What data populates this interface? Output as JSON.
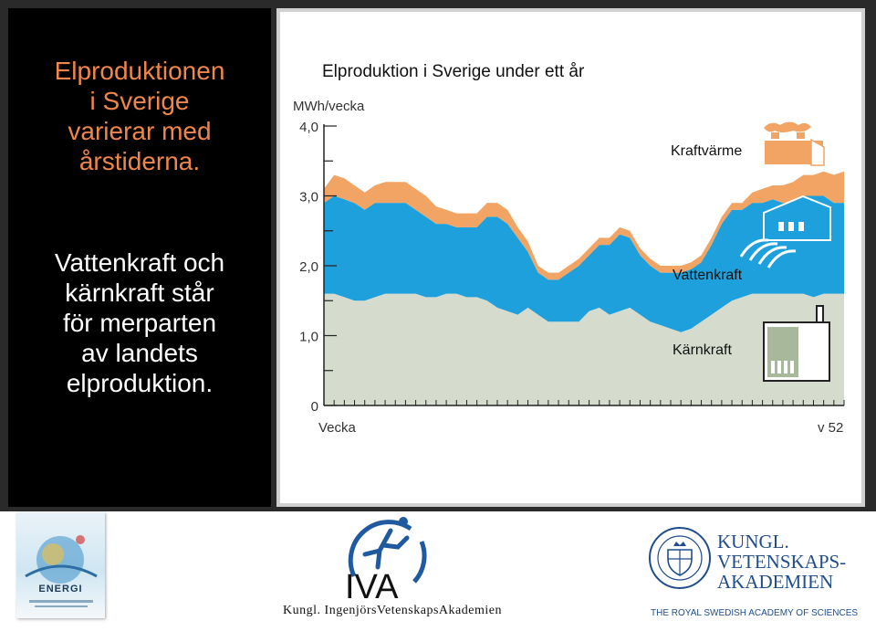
{
  "slide": {
    "heading_lines": [
      "Elproduktionen",
      "i Sverige",
      "varierar med",
      "årstiderna."
    ],
    "body_lines": [
      "Vattenkraft och",
      "kärnkraft står",
      "för merparten",
      "av landets",
      "elproduktion."
    ],
    "accent_color": "#f0874a"
  },
  "chart_data": {
    "type": "area",
    "stacked": true,
    "title": "Elproduktion i Sverige under ett år",
    "ylabel": "MWh/vecka",
    "xlabel": "Vecka",
    "x_end_label": "v 52",
    "ylim": [
      0,
      4.0
    ],
    "y_ticks": [
      {
        "value": 0,
        "label": "0"
      },
      {
        "value": 1.0,
        "label": "1,0"
      },
      {
        "value": 2.0,
        "label": "2,0"
      },
      {
        "value": 3.0,
        "label": "3,0"
      },
      {
        "value": 4.0,
        "label": "4,0"
      }
    ],
    "x": [
      1,
      2,
      3,
      4,
      5,
      6,
      7,
      8,
      9,
      10,
      11,
      12,
      13,
      14,
      15,
      16,
      17,
      18,
      19,
      20,
      21,
      22,
      23,
      24,
      25,
      26,
      27,
      28,
      29,
      30,
      31,
      32,
      33,
      34,
      35,
      36,
      37,
      38,
      39,
      40,
      41,
      42,
      43,
      44,
      45,
      46,
      47,
      48,
      49,
      50,
      51,
      52
    ],
    "series": [
      {
        "name": "Kärnkraft",
        "color": "#d5dbcd",
        "values": [
          1.6,
          1.6,
          1.55,
          1.5,
          1.5,
          1.55,
          1.6,
          1.6,
          1.6,
          1.6,
          1.55,
          1.55,
          1.6,
          1.6,
          1.55,
          1.55,
          1.5,
          1.4,
          1.35,
          1.3,
          1.4,
          1.3,
          1.2,
          1.2,
          1.2,
          1.2,
          1.35,
          1.4,
          1.3,
          1.35,
          1.4,
          1.3,
          1.2,
          1.15,
          1.1,
          1.05,
          1.1,
          1.2,
          1.3,
          1.4,
          1.5,
          1.55,
          1.6,
          1.6,
          1.6,
          1.6,
          1.6,
          1.6,
          1.55,
          1.6,
          1.6,
          1.6
        ]
      },
      {
        "name": "Vattenkraft",
        "color": "#1ea0dc",
        "values": [
          1.3,
          1.4,
          1.4,
          1.4,
          1.3,
          1.35,
          1.3,
          1.3,
          1.3,
          1.2,
          1.15,
          1.05,
          1.0,
          0.95,
          1.0,
          1.0,
          1.2,
          1.3,
          1.25,
          1.1,
          0.8,
          0.6,
          0.6,
          0.6,
          0.7,
          0.8,
          0.8,
          0.9,
          1.0,
          1.1,
          1.0,
          0.85,
          0.8,
          0.75,
          0.8,
          0.85,
          0.85,
          0.85,
          1.0,
          1.2,
          1.3,
          1.25,
          1.3,
          1.3,
          1.35,
          1.3,
          1.3,
          1.4,
          1.45,
          1.4,
          1.3,
          1.3
        ]
      },
      {
        "name": "Kraftvärme",
        "color": "#f2a464",
        "values": [
          0.2,
          0.3,
          0.3,
          0.25,
          0.25,
          0.25,
          0.3,
          0.3,
          0.3,
          0.3,
          0.3,
          0.25,
          0.2,
          0.2,
          0.2,
          0.2,
          0.2,
          0.2,
          0.2,
          0.15,
          0.15,
          0.1,
          0.1,
          0.1,
          0.1,
          0.1,
          0.1,
          0.1,
          0.1,
          0.1,
          0.1,
          0.1,
          0.1,
          0.1,
          0.1,
          0.1,
          0.1,
          0.1,
          0.1,
          0.1,
          0.1,
          0.1,
          0.15,
          0.2,
          0.2,
          0.25,
          0.3,
          0.3,
          0.3,
          0.35,
          0.4,
          0.45
        ]
      }
    ],
    "series_labels": [
      "Kraftvärme",
      "Vattenkraft",
      "Kärnkraft"
    ]
  },
  "logos": {
    "energi_title": "ENERGI",
    "iva_letters": "IVA",
    "iva_caption": "Kungl. IngenjörsVetenskapsAkademien",
    "kva_name_lines": [
      "KUNGL.",
      "VETENSKAPS-",
      "AKADEMIEN"
    ],
    "kva_subtitle": "THE ROYAL SWEDISH ACADEMY OF SCIENCES"
  }
}
